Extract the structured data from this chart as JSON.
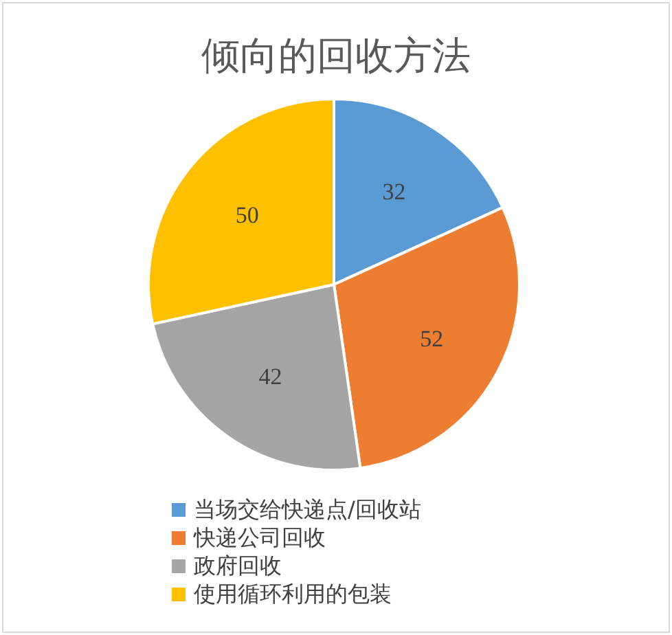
{
  "chart_data": {
    "type": "pie",
    "title": "倾向的回收方法",
    "categories": [
      "当场交给快递点/回收站",
      "快递公司回收",
      "政府回收",
      "使用循环利用的包装"
    ],
    "values": [
      32,
      52,
      42,
      50
    ],
    "colors": [
      "#5b9bd5",
      "#ed7d31",
      "#a5a5a5",
      "#ffc000"
    ],
    "data_labels": true,
    "legend": "bottom"
  }
}
